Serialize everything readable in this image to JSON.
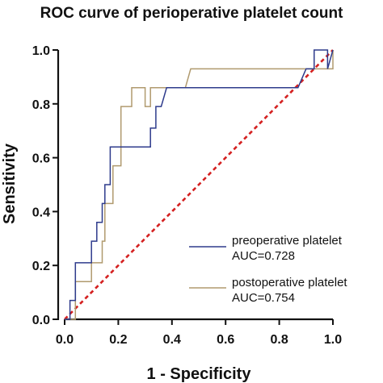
{
  "chart_data": {
    "type": "line",
    "title": "ROC curve of perioperative platelet count",
    "xlabel": "1 - Specificity",
    "ylabel": "Sensitivity",
    "xlim": [
      0,
      1
    ],
    "ylim": [
      0,
      1
    ],
    "xticks": [
      "0.0",
      "0.2",
      "0.4",
      "0.6",
      "0.8",
      "1.0"
    ],
    "yticks": [
      "0.0",
      "0.2",
      "0.4",
      "0.6",
      "0.8",
      "1.0"
    ],
    "grid": false,
    "legend_position": "bottom-right",
    "series": [
      {
        "name": "preoperative platelet",
        "auc_label": "AUC=0.728",
        "color": "#2e3b8c",
        "x": [
          0,
          0.02,
          0.02,
          0.04,
          0.04,
          0.1,
          0.1,
          0.12,
          0.12,
          0.14,
          0.14,
          0.15,
          0.15,
          0.17,
          0.17,
          0.32,
          0.32,
          0.34,
          0.34,
          0.36,
          0.38,
          0.38,
          0.87,
          0.9,
          0.92,
          0.93,
          0.93,
          0.98,
          0.98,
          1.0
        ],
        "y": [
          0,
          0,
          0.07,
          0.07,
          0.21,
          0.21,
          0.29,
          0.29,
          0.36,
          0.36,
          0.43,
          0.43,
          0.5,
          0.5,
          0.64,
          0.64,
          0.71,
          0.71,
          0.79,
          0.79,
          0.86,
          0.86,
          0.86,
          0.93,
          0.93,
          0.93,
          1.0,
          1.0,
          0.93,
          1.0
        ]
      },
      {
        "name": "postoperative platelet",
        "auc_label": "AUC=0.754",
        "color": "#b09a6e",
        "x": [
          0,
          0.04,
          0.04,
          0.1,
          0.1,
          0.14,
          0.14,
          0.15,
          0.15,
          0.18,
          0.18,
          0.21,
          0.21,
          0.25,
          0.25,
          0.3,
          0.3,
          0.32,
          0.32,
          0.45,
          0.47,
          0.93,
          0.93,
          1.0,
          1.0
        ],
        "y": [
          0,
          0,
          0.14,
          0.14,
          0.21,
          0.21,
          0.29,
          0.29,
          0.43,
          0.43,
          0.57,
          0.57,
          0.79,
          0.79,
          0.86,
          0.86,
          0.79,
          0.79,
          0.86,
          0.86,
          0.93,
          0.93,
          0.93,
          0.93,
          1.0
        ]
      },
      {
        "name": "",
        "color": "#d42020",
        "style": "dashed",
        "x": [
          0,
          1
        ],
        "y": [
          0,
          1
        ]
      }
    ]
  }
}
